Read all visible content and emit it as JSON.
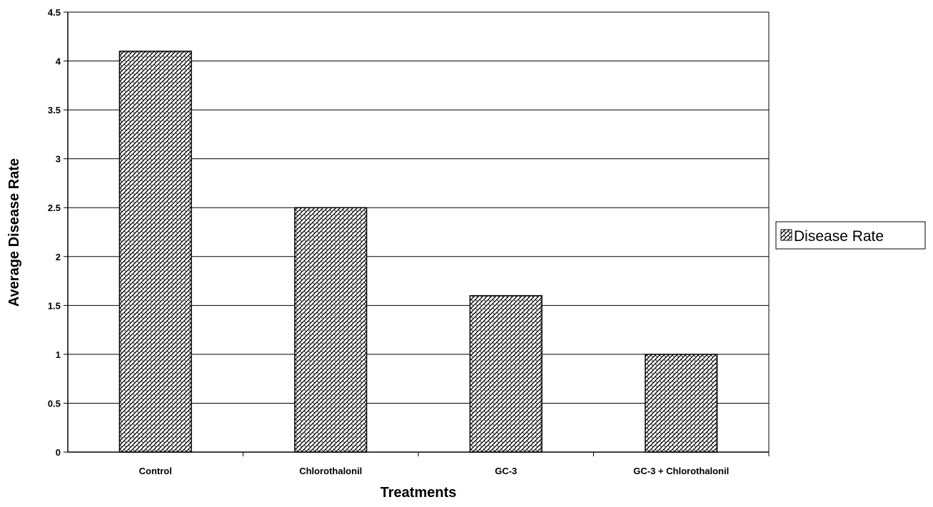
{
  "chart_data": {
    "type": "bar",
    "title": "",
    "xlabel": "Treatments",
    "ylabel": "Average Disease Rate",
    "categories": [
      "Control",
      "Chlorothalonil",
      "GC-3",
      "GC-3 + Chlorothalonil"
    ],
    "series": [
      {
        "name": "Disease Rate",
        "values": [
          4.1,
          2.5,
          1.6,
          1.0
        ]
      }
    ],
    "ylim": [
      0,
      4.5
    ],
    "yticks": [
      "0",
      "0.5",
      "1",
      "1.5",
      "2",
      "2.5",
      "3",
      "3.5",
      "4",
      "4.5"
    ],
    "grid": true,
    "legend_position": "right",
    "bar_pattern": "crosshatch",
    "colors": {
      "bar_fill": "#ffffff",
      "bar_hatch": "#000000",
      "gridline": "#000000",
      "axis": "#000000"
    }
  }
}
